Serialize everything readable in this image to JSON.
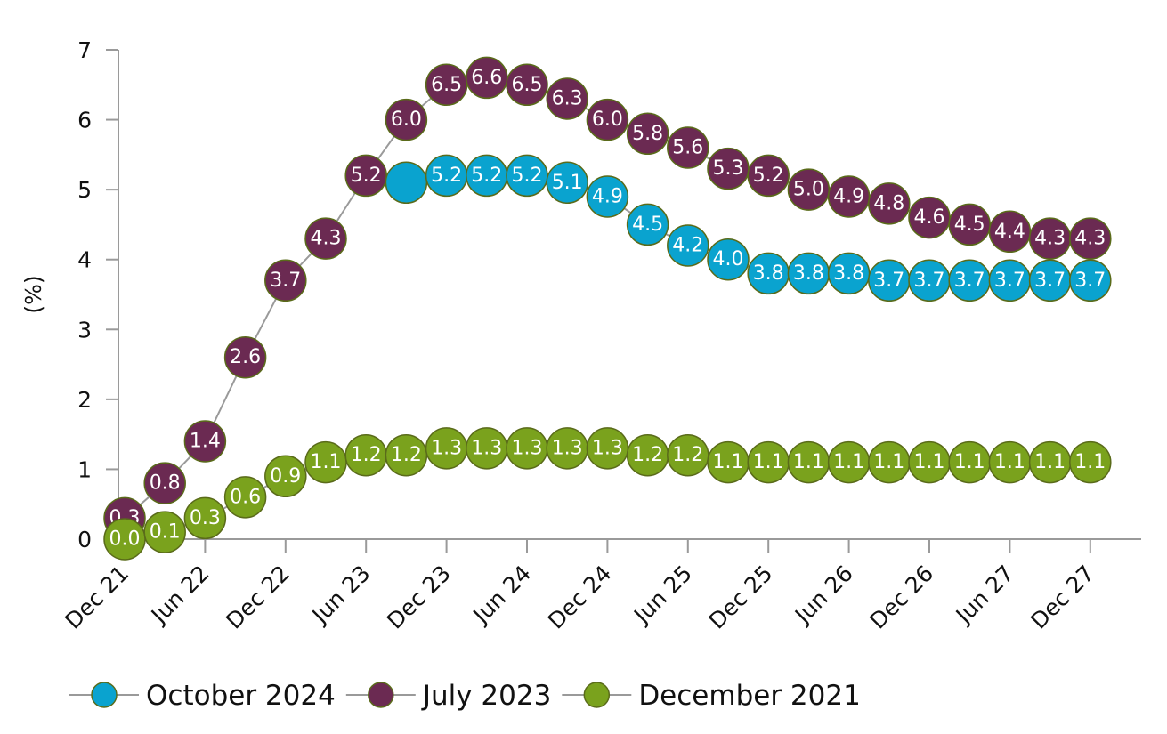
{
  "chart_data": {
    "type": "line",
    "categories": [
      "Dec 21",
      "Jun 22",
      "Dec 22",
      "Jun 23",
      "Dec 23",
      "Jun 24",
      "Dec 24",
      "Jun 25",
      "Dec 25",
      "Jun 26",
      "Dec 26",
      "Jun 27",
      "Dec 27"
    ],
    "x_points": [
      "Dec 21",
      "Mar 22",
      "Jun 22",
      "Sep 22",
      "Dec 22",
      "Mar 23",
      "Jun 23",
      "Sep 23",
      "Dec 23",
      "Mar 24",
      "Jun 24",
      "Sep 24",
      "Dec 24",
      "Mar 25",
      "Jun 25",
      "Sep 25",
      "Dec 25",
      "Mar 26",
      "Jun 26",
      "Sep 26",
      "Dec 26",
      "Mar 27",
      "Jun 27",
      "Sep 27",
      "Dec 27"
    ],
    "ylabel": "(%)",
    "ylim": [
      0,
      7
    ],
    "yticks": [
      "0",
      "1",
      "2",
      "3",
      "4",
      "5",
      "6",
      "7"
    ],
    "grid": false,
    "legend_position": "bottom-left",
    "series": [
      {
        "name": "October 2024",
        "color": "#0aa3cf",
        "x": [
          "Sep 23",
          "Dec 23",
          "Mar 24",
          "Jun 24",
          "Sep 24",
          "Dec 24",
          "Mar 25",
          "Jun 25",
          "Sep 25",
          "Dec 25",
          "Mar 26",
          "Jun 26",
          "Sep 26",
          "Dec 26",
          "Mar 27",
          "Jun 27",
          "Sep 27",
          "Dec 27"
        ],
        "values": [
          5.1,
          5.2,
          5.2,
          5.2,
          5.1,
          4.9,
          4.5,
          4.2,
          4.0,
          3.8,
          3.8,
          3.8,
          3.7,
          3.7,
          3.7,
          3.7,
          3.7,
          3.7
        ],
        "labels": [
          "",
          "5.2",
          "5.2",
          "5.2",
          "5.1",
          "4.9",
          "4.5",
          "4.2",
          "4.0",
          "3.8",
          "3.8",
          "3.8",
          "3.7",
          "3.7",
          "3.7",
          "3.7",
          "3.7",
          "3.7"
        ]
      },
      {
        "name": "July 2023",
        "color": "#6b2a52",
        "x": [
          "Dec 21",
          "Mar 22",
          "Jun 22",
          "Sep 22",
          "Dec 22",
          "Mar 23",
          "Jun 23",
          "Sep 23",
          "Dec 23",
          "Mar 24",
          "Jun 24",
          "Sep 24",
          "Dec 24",
          "Mar 25",
          "Jun 25",
          "Sep 25",
          "Dec 25",
          "Mar 26",
          "Jun 26",
          "Sep 26",
          "Dec 26",
          "Mar 27",
          "Jun 27",
          "Sep 27",
          "Dec 27"
        ],
        "values": [
          0.3,
          0.8,
          1.4,
          2.6,
          3.7,
          4.3,
          5.2,
          6.0,
          6.5,
          6.6,
          6.5,
          6.3,
          6.0,
          5.8,
          5.6,
          5.3,
          5.2,
          5.0,
          4.9,
          4.8,
          4.6,
          4.5,
          4.4,
          4.3,
          4.3
        ],
        "labels": [
          "0.3",
          "0.8",
          "1.4",
          "2.6",
          "3.7",
          "4.3",
          "5.2",
          "6.0",
          "6.5",
          "6.6",
          "6.5",
          "6.3",
          "6.0",
          "5.8",
          "5.6",
          "5.3",
          "5.2",
          "5.0",
          "4.9",
          "4.8",
          "4.6",
          "4.5",
          "4.4",
          "4.3",
          "4.3"
        ]
      },
      {
        "name": "December 2021",
        "color": "#7aa21d",
        "x": [
          "Dec 21",
          "Mar 22",
          "Jun 22",
          "Sep 22",
          "Dec 22",
          "Mar 23",
          "Jun 23",
          "Sep 23",
          "Dec 23",
          "Mar 24",
          "Jun 24",
          "Sep 24",
          "Dec 24",
          "Mar 25",
          "Jun 25",
          "Sep 25",
          "Dec 25",
          "Mar 26",
          "Jun 26",
          "Sep 26",
          "Dec 26",
          "Mar 27",
          "Jun 27",
          "Sep 27",
          "Dec 27"
        ],
        "values": [
          0.0,
          0.1,
          0.3,
          0.6,
          0.9,
          1.1,
          1.2,
          1.2,
          1.3,
          1.3,
          1.3,
          1.3,
          1.3,
          1.2,
          1.2,
          1.1,
          1.1,
          1.1,
          1.1,
          1.1,
          1.1,
          1.1,
          1.1,
          1.1,
          1.1
        ],
        "labels": [
          "0.0",
          "0.1",
          "0.3",
          "0.6",
          "0.9",
          "1.1",
          "1.2",
          "1.2",
          "1.3",
          "1.3",
          "1.3",
          "1.3",
          "1.3",
          "1.2",
          "1.2",
          "1.1",
          "1.1",
          "1.1",
          "1.1",
          "1.1",
          "1.1",
          "1.1",
          "1.1",
          "1.1",
          "1.1"
        ]
      }
    ]
  },
  "legend": {
    "items": [
      {
        "label": "October 2024",
        "color": "#0aa3cf"
      },
      {
        "label": "July 2023",
        "color": "#6b2a52"
      },
      {
        "label": "December 2021",
        "color": "#7aa21d"
      }
    ]
  }
}
